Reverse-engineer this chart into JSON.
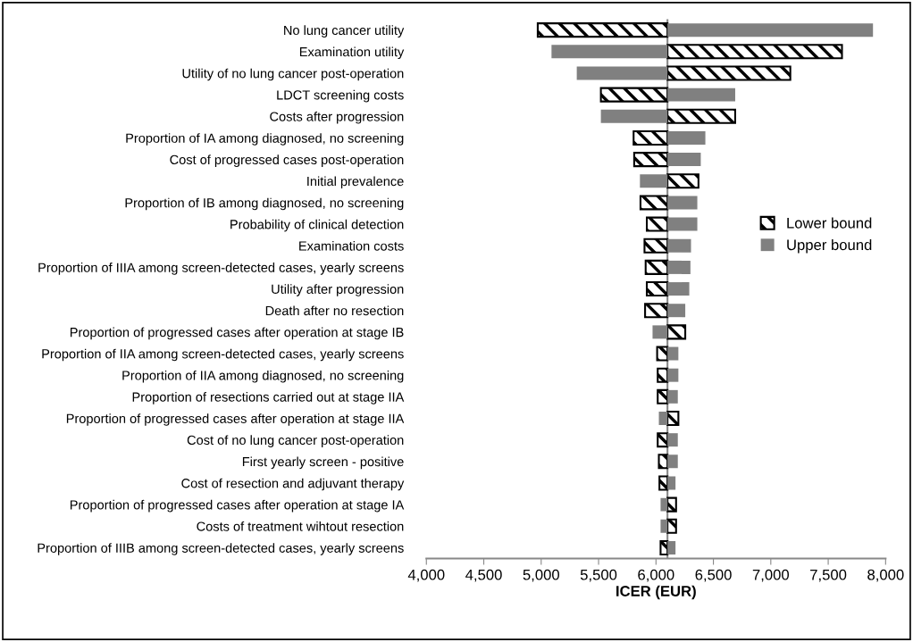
{
  "chart_data": {
    "type": "bar",
    "orientation": "horizontal",
    "xlabel": "ICER (EUR)",
    "categories": [
      "No lung cancer utility",
      "Examination utility",
      "Utility of no lung cancer post-operation",
      "LDCT screening costs",
      "Costs after progression",
      "Proportion of IA among diagnosed, no screening",
      "Cost of progressed cases post-operation",
      "Initial prevalence",
      "Proportion of IB among diagnosed, no screening",
      "Probability of clinical detection",
      "Examination costs",
      "Proportion of IIIA among screen-detected cases, yearly screens",
      "Utility after progression",
      "Death after no resection",
      "Proportion of progressed cases after operation at stage IB",
      "Proportion of IIA among screen-detected cases, yearly screens",
      "Proportion of IIA among diagnosed, no screening",
      "Proportion of resections carried out at stage IIA",
      "Proportion of progressed cases after operation at stage IIA",
      "Cost of no lung cancer post-operation",
      "First yearly screen - positive",
      "Cost of resection and adjuvant therapy",
      "Proportion of progressed cases after operation at stage IA",
      "Costs of treatment wihtout resection",
      "Proportion of IIIB among screen-detected cases, yearly screens"
    ],
    "ref_lines": [
      {
        "axis": "x",
        "value": 6100,
        "color": "#888888"
      }
    ],
    "series": [
      {
        "name": "Lower bound",
        "color": "#000000",
        "base": [
          6100,
          6100,
          6100,
          6100,
          6100,
          6100,
          6100,
          6100,
          6100,
          6100,
          6100,
          6100,
          6100,
          6100,
          6100,
          6100,
          6100,
          6100,
          6100,
          6100,
          6100,
          6100,
          6100,
          6100,
          6100
        ],
        "values": [
          -1130,
          1520,
          1070,
          -580,
          590,
          -295,
          -290,
          270,
          -235,
          -180,
          -200,
          -190,
          -180,
          -195,
          155,
          -90,
          -85,
          -85,
          95,
          -85,
          -75,
          -70,
          75,
          75,
          -60
        ]
      },
      {
        "name": "Upper bound",
        "color": "#808080",
        "base": [
          6100,
          6100,
          6100,
          6100,
          6100,
          6100,
          6100,
          6100,
          6100,
          6100,
          6100,
          6100,
          6100,
          6100,
          6100,
          6100,
          6100,
          6100,
          6100,
          6100,
          6100,
          6100,
          6100,
          6100,
          6100
        ],
        "values": [
          1790,
          -1010,
          -790,
          590,
          -580,
          330,
          290,
          -240,
          260,
          260,
          205,
          200,
          190,
          155,
          -130,
          95,
          95,
          90,
          -75,
          90,
          90,
          70,
          -60,
          -60,
          70
        ]
      }
    ],
    "xlim": [
      4000,
      8000
    ],
    "xticks": [
      {
        "value": 4000,
        "label": "4,000"
      },
      {
        "value": 4500,
        "label": "4,500"
      },
      {
        "value": 5000,
        "label": "5,000"
      },
      {
        "value": 5500,
        "label": "5,500"
      },
      {
        "value": 6000,
        "label": "6,000"
      },
      {
        "value": 6500,
        "label": "6,500"
      },
      {
        "value": 7000,
        "label": "7,000"
      },
      {
        "value": 7500,
        "label": "7,500"
      },
      {
        "value": 8000,
        "label": "8,000"
      }
    ],
    "legend": "right",
    "grid": false
  }
}
